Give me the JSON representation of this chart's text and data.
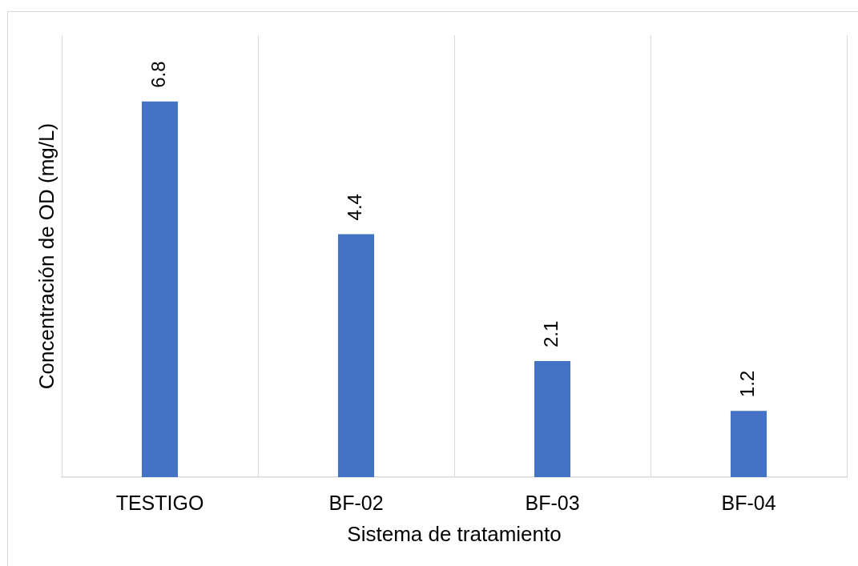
{
  "chart_data": {
    "type": "bar",
    "xlabel": "Sistema de tratamiento",
    "ylabel": "Concentración de OD (mg/L)",
    "categories": [
      "TESTIGO",
      "BF-02",
      "BF-03",
      "BF-04"
    ],
    "values": [
      6.8,
      4.4,
      2.1,
      1.2
    ],
    "color": "#4472c4",
    "ylim": [
      0,
      8
    ],
    "grid": "x",
    "tick_labels": "x",
    "data_labels": true,
    "legend": false
  }
}
